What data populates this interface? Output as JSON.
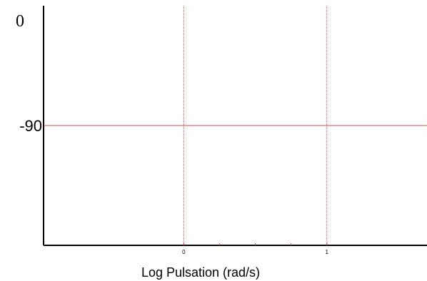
{
  "chart_data": {
    "type": "line",
    "title": "",
    "xlabel": "Log Pulsation (rad/s)",
    "ylabel": "",
    "x_scale": "log10",
    "xlim": [
      -0.98,
      1.7
    ],
    "ylim": [
      -180,
      0
    ],
    "x_ticks": [
      {
        "value": 0,
        "label": "0"
      },
      {
        "value": 1,
        "label": "1"
      }
    ],
    "x_minor_ticks": [
      0.25,
      0.5,
      0.75
    ],
    "y_ticks": [
      {
        "value": 0,
        "label": "0"
      },
      {
        "value": -90,
        "label": "-90"
      }
    ],
    "reference_line": {
      "y": -90,
      "color": "#e8484b"
    },
    "grid": true,
    "grid_color": "#e8484b",
    "axis_color": "#000000",
    "series": []
  }
}
